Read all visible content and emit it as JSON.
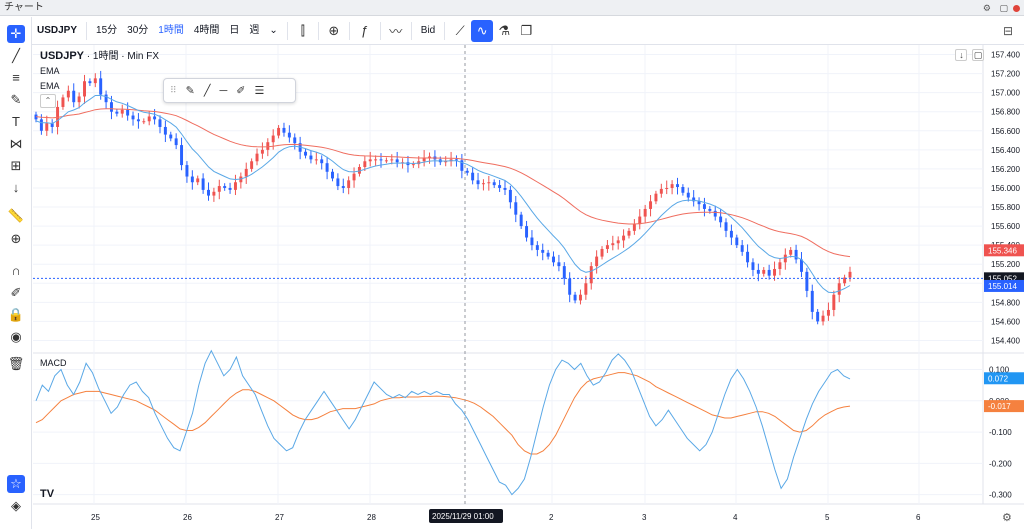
{
  "window": {
    "title": "チャート",
    "controls": "⚙ ▢"
  },
  "toolbar": {
    "symbol": "USDJPY",
    "intervals": [
      {
        "label": "15分",
        "active": false
      },
      {
        "label": "30分",
        "active": false
      },
      {
        "label": "1時間",
        "active": true
      },
      {
        "label": "4時間",
        "active": false
      },
      {
        "label": "日",
        "active": false
      },
      {
        "label": "週",
        "active": false
      }
    ],
    "bid_label": "Bid"
  },
  "legend": {
    "symbol": "USDJPY",
    "interval": "1時間",
    "source": "Min FX",
    "indicators": [
      "EMA",
      "EMA"
    ]
  },
  "macd": {
    "label": "MACD"
  },
  "crosshair": {
    "time_label": "2025/11/29  01:00"
  },
  "colors": {
    "up": "#ef5350",
    "down": "#2962ff",
    "ema_fast": "#5aa8e6",
    "ema_slow": "#ef6d5f",
    "macd": "#5aa8e6",
    "signal": "#f5813f",
    "accent": "#2962ff"
  },
  "chart_data": [
    {
      "type": "candlestick",
      "title": "USDJPY 1時間 Min FX",
      "x_ticks": [
        "25",
        "26",
        "27",
        "28",
        "2",
        "3",
        "4",
        "5",
        "6"
      ],
      "y_ticks": [
        154.4,
        154.6,
        154.8,
        155.0,
        155.2,
        155.4,
        155.6,
        155.8,
        156.0,
        156.2,
        156.4,
        156.6,
        156.8,
        157.0,
        157.2,
        157.4
      ],
      "ylim": [
        154.3,
        157.5
      ],
      "price_labels": [
        {
          "text": "155.346",
          "value": 155.346,
          "color": "#ef5350"
        },
        {
          "text": "155.052",
          "value": 155.052,
          "color": "#131722"
        },
        {
          "text": "155.014",
          "value": 155.014,
          "color": "#2962ff"
        }
      ],
      "close": [
        156.72,
        156.6,
        156.68,
        156.64,
        156.85,
        156.95,
        157.02,
        156.9,
        156.96,
        157.12,
        157.1,
        157.15,
        156.98,
        156.9,
        156.8,
        156.78,
        156.82,
        156.76,
        156.72,
        156.7,
        156.7,
        156.75,
        156.72,
        156.64,
        156.56,
        156.52,
        156.45,
        156.24,
        156.12,
        156.06,
        156.1,
        155.98,
        155.92,
        155.96,
        156.02,
        156.0,
        155.98,
        156.06,
        156.12,
        156.2,
        156.28,
        156.36,
        156.4,
        156.48,
        156.55,
        156.63,
        156.58,
        156.53,
        156.47,
        156.38,
        156.34,
        156.3,
        156.3,
        156.26,
        156.17,
        156.1,
        156.02,
        156.0,
        156.08,
        156.15,
        156.22,
        156.28,
        156.3,
        156.3,
        156.29,
        156.29,
        156.3,
        156.27,
        156.27,
        156.24,
        156.25,
        156.28,
        156.32,
        156.33,
        156.3,
        156.27,
        156.28,
        156.3,
        156.29,
        156.18,
        156.16,
        156.08,
        156.04,
        156.05,
        156.06,
        156.03,
        156.0,
        155.98,
        155.85,
        155.72,
        155.6,
        155.48,
        155.4,
        155.35,
        155.32,
        155.28,
        155.22,
        155.18,
        155.05,
        154.88,
        154.82,
        154.88,
        155.0,
        155.18,
        155.28,
        155.36,
        155.4,
        155.42,
        155.45,
        155.5,
        155.55,
        155.62,
        155.7,
        155.78,
        155.86,
        155.94,
        155.99,
        156.0,
        156.04,
        156.01,
        155.95,
        155.9,
        155.86,
        155.83,
        155.78,
        155.76,
        155.7,
        155.64,
        155.55,
        155.48,
        155.4,
        155.33,
        155.22,
        155.14,
        155.1,
        155.14,
        155.08,
        155.15,
        155.22,
        155.3,
        155.35,
        155.25,
        155.12,
        154.92,
        154.7,
        154.6,
        154.66,
        154.72,
        154.88,
        155.0,
        155.06,
        155.12
      ],
      "ema_fast_start": 156.7,
      "ema_slow_start": 156.75
    },
    {
      "type": "line",
      "title": "MACD",
      "y_ticks": [
        0.1,
        0.0,
        -0.1,
        -0.2,
        -0.3
      ],
      "ylim": [
        -0.33,
        0.14
      ],
      "value_labels": [
        {
          "text": "0.072",
          "value": 0.072,
          "color": "#2196f3"
        },
        {
          "text": "-0.017",
          "value": -0.017,
          "color": "#f5813f"
        }
      ],
      "series": [
        {
          "values": [
            0.0,
            0.05,
            0.03,
            0.08,
            0.1,
            0.05,
            0.02,
            0.06,
            0.12,
            0.09,
            0.04,
            0.0,
            -0.04,
            -0.02,
            0.02,
            0.05,
            0.06,
            0.03,
            0.01,
            -0.04,
            -0.08,
            -0.12,
            -0.15,
            -0.16,
            -0.1,
            -0.04,
            0.05,
            0.12,
            0.16,
            0.12,
            0.08,
            0.1,
            0.14,
            0.08,
            0.05,
            0.02,
            -0.03,
            -0.08,
            -0.12,
            -0.14,
            -0.16,
            -0.15,
            -0.1,
            -0.06,
            -0.03,
            0.0,
            0.03,
            0.0,
            -0.03,
            -0.06,
            -0.09,
            -0.06,
            -0.02,
            0.02,
            0.06,
            0.04,
            0.02,
            0.01,
            0.02,
            0.01,
            0.03,
            0.02,
            0.03,
            0.02,
            0.03,
            0.02,
            0.02,
            -0.01,
            -0.03,
            -0.06,
            -0.1,
            -0.14,
            -0.18,
            -0.22,
            -0.26,
            -0.27,
            -0.3,
            -0.28,
            -0.25,
            -0.18,
            -0.1,
            -0.02,
            0.05,
            0.1,
            0.13,
            0.12,
            0.1,
            0.12,
            0.08,
            0.05,
            0.06,
            0.09,
            0.13,
            0.15,
            0.13,
            0.1,
            0.05,
            0.0,
            -0.05,
            -0.08,
            -0.06,
            -0.03,
            -0.06,
            -0.09,
            -0.12,
            -0.14,
            -0.16,
            -0.14,
            -0.1,
            -0.04,
            0.02,
            0.07,
            0.1,
            0.07,
            0.03,
            -0.02,
            -0.08,
            -0.15,
            -0.22,
            -0.28,
            -0.25,
            -0.18,
            -0.12,
            -0.06,
            -0.01,
            0.03,
            0.06,
            0.09,
            0.1,
            0.08,
            0.07
          ]
        },
        {
          "values": [
            -0.07,
            -0.06,
            -0.04,
            -0.02,
            0.0,
            0.01,
            0.02,
            0.025,
            0.03,
            0.03,
            0.03,
            0.025,
            0.02,
            0.015,
            0.01,
            0.005,
            0.0,
            -0.01,
            -0.02,
            -0.03,
            -0.045,
            -0.06,
            -0.075,
            -0.09,
            -0.095,
            -0.095,
            -0.085,
            -0.07,
            -0.05,
            -0.03,
            -0.01,
            0.01,
            0.025,
            0.035,
            0.035,
            0.03,
            0.02,
            0.01,
            0.0,
            -0.015,
            -0.03,
            -0.045,
            -0.055,
            -0.06,
            -0.06,
            -0.055,
            -0.045,
            -0.035,
            -0.03,
            -0.025,
            -0.025,
            -0.025,
            -0.02,
            -0.015,
            -0.01,
            0.0,
            0.005,
            0.01,
            0.01,
            0.012,
            0.012,
            0.012,
            0.014,
            0.014,
            0.015,
            0.014,
            0.012,
            0.01,
            0.005,
            0.0,
            -0.008,
            -0.02,
            -0.035,
            -0.05,
            -0.07,
            -0.09,
            -0.11,
            -0.14,
            -0.16,
            -0.17,
            -0.17,
            -0.16,
            -0.14,
            -0.11,
            -0.07,
            -0.03,
            0.01,
            0.04,
            0.06,
            0.07,
            0.075,
            0.08,
            0.085,
            0.09,
            0.09,
            0.085,
            0.08,
            0.07,
            0.06,
            0.045,
            0.035,
            0.025,
            0.015,
            0.005,
            -0.005,
            -0.015,
            -0.025,
            -0.035,
            -0.045,
            -0.05,
            -0.055,
            -0.055,
            -0.05,
            -0.045,
            -0.04,
            -0.035,
            -0.035,
            -0.04,
            -0.05,
            -0.065,
            -0.08,
            -0.095,
            -0.1,
            -0.095,
            -0.08,
            -0.06,
            -0.045,
            -0.035,
            -0.025,
            -0.02,
            -0.017
          ]
        }
      ]
    }
  ]
}
